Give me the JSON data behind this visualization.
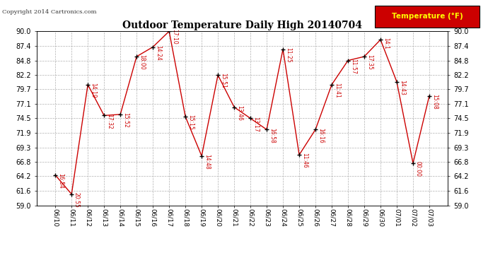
{
  "title": "Outdoor Temperature Daily High 20140704",
  "copyright_text": "Copyright 2014 Cartronics.com",
  "legend_label": "Temperature (°F)",
  "dates": [
    "06/10",
    "06/11",
    "06/12",
    "06/13",
    "06/14",
    "06/15",
    "06/16",
    "06/17",
    "06/18",
    "06/19",
    "06/20",
    "06/21",
    "06/22",
    "06/23",
    "06/24",
    "06/25",
    "06/26",
    "06/27",
    "06/28",
    "06/29",
    "06/30",
    "07/01",
    "07/02",
    "07/03"
  ],
  "temperatures": [
    64.4,
    61.0,
    80.5,
    75.0,
    75.2,
    85.5,
    87.2,
    90.0,
    74.8,
    67.8,
    82.2,
    76.5,
    74.5,
    72.5,
    86.8,
    68.0,
    72.5,
    80.5,
    84.8,
    85.5,
    88.5,
    81.0,
    66.5,
    78.5
  ],
  "labels": [
    "16:54",
    "20:55",
    "14:19",
    "17:32",
    "15:52",
    "18:00",
    "14:24",
    "17:10",
    "15:15",
    "14:48",
    "15:51",
    "13:46",
    "13:17",
    "16:58",
    "11:25",
    "11:46",
    "16:16",
    "11:41",
    "11:57",
    "17:35",
    "14:1",
    "14:43",
    "00:00",
    "15:08"
  ],
  "line_color": "#cc0000",
  "marker_color": "#000000",
  "label_color": "#cc0000",
  "bg_color": "#ffffff",
  "grid_color": "#b0b0b0",
  "ylim_min": 59.0,
  "ylim_max": 90.0,
  "yticks": [
    59.0,
    61.6,
    64.2,
    66.8,
    69.3,
    71.9,
    74.5,
    77.1,
    79.7,
    82.2,
    84.8,
    87.4,
    90.0
  ]
}
